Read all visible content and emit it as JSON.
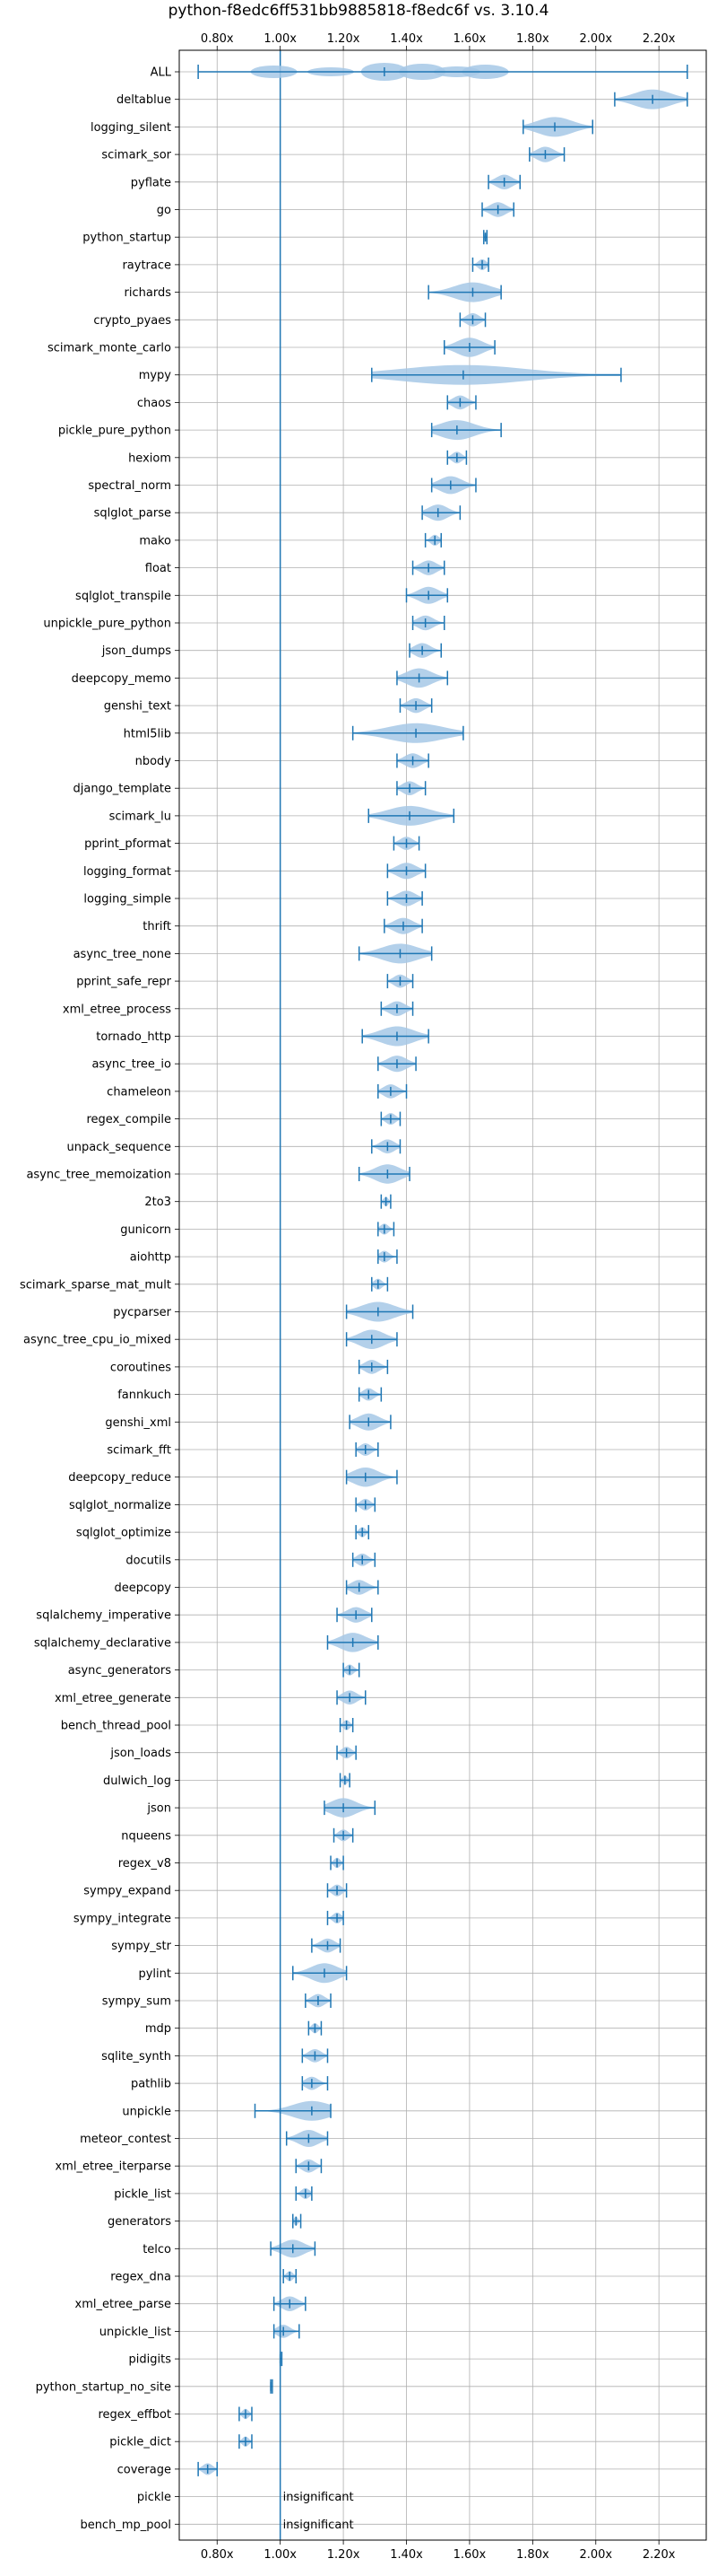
{
  "chart_data": {
    "type": "violin",
    "title": "python-f8edc6ff531bb9885818-f8edc6f vs. 3.10.4",
    "x_ticks": [
      0.8,
      1.0,
      1.2,
      1.4,
      1.6,
      1.8,
      2.0,
      2.2
    ],
    "x_tick_labels": [
      "0.80x",
      "1.00x",
      "1.20x",
      "1.40x",
      "1.60x",
      "1.80x",
      "2.00x",
      "2.20x"
    ],
    "xlim": [
      0.68,
      2.35
    ],
    "reference_line": 1.0,
    "grid": true,
    "colors": {
      "line": "#1f77b4",
      "violin": "#a6c8e6",
      "grid": "#b0b0b0"
    },
    "insignificant_label": "insignificant",
    "benchmarks": [
      {
        "name": "ALL",
        "min": 0.74,
        "median": 1.33,
        "max": 2.29,
        "spread": "all"
      },
      {
        "name": "deltablue",
        "min": 2.06,
        "median": 2.18,
        "max": 2.29
      },
      {
        "name": "logging_silent",
        "min": 1.77,
        "median": 1.87,
        "max": 1.99
      },
      {
        "name": "scimark_sor",
        "min": 1.79,
        "median": 1.84,
        "max": 1.9
      },
      {
        "name": "pyflate",
        "min": 1.66,
        "median": 1.71,
        "max": 1.76
      },
      {
        "name": "go",
        "min": 1.64,
        "median": 1.69,
        "max": 1.74
      },
      {
        "name": "python_startup",
        "min": 1.645,
        "median": 1.65,
        "max": 1.655
      },
      {
        "name": "raytrace",
        "min": 1.61,
        "median": 1.64,
        "max": 1.66
      },
      {
        "name": "richards",
        "min": 1.47,
        "median": 1.61,
        "max": 1.7
      },
      {
        "name": "crypto_pyaes",
        "min": 1.57,
        "median": 1.61,
        "max": 1.65
      },
      {
        "name": "scimark_monte_carlo",
        "min": 1.52,
        "median": 1.6,
        "max": 1.68
      },
      {
        "name": "mypy",
        "min": 1.29,
        "median": 1.58,
        "max": 2.08,
        "skew": true
      },
      {
        "name": "chaos",
        "min": 1.53,
        "median": 1.57,
        "max": 1.62
      },
      {
        "name": "pickle_pure_python",
        "min": 1.48,
        "median": 1.56,
        "max": 1.7
      },
      {
        "name": "hexiom",
        "min": 1.53,
        "median": 1.56,
        "max": 1.59
      },
      {
        "name": "spectral_norm",
        "min": 1.48,
        "median": 1.54,
        "max": 1.62
      },
      {
        "name": "sqlglot_parse",
        "min": 1.45,
        "median": 1.5,
        "max": 1.57
      },
      {
        "name": "mako",
        "min": 1.46,
        "median": 1.49,
        "max": 1.51
      },
      {
        "name": "float",
        "min": 1.42,
        "median": 1.47,
        "max": 1.52
      },
      {
        "name": "sqlglot_transpile",
        "min": 1.4,
        "median": 1.47,
        "max": 1.53
      },
      {
        "name": "unpickle_pure_python",
        "min": 1.42,
        "median": 1.46,
        "max": 1.52
      },
      {
        "name": "json_dumps",
        "min": 1.41,
        "median": 1.45,
        "max": 1.51
      },
      {
        "name": "deepcopy_memo",
        "min": 1.37,
        "median": 1.44,
        "max": 1.53
      },
      {
        "name": "genshi_text",
        "min": 1.38,
        "median": 1.43,
        "max": 1.48
      },
      {
        "name": "html5lib",
        "min": 1.23,
        "median": 1.43,
        "max": 1.58
      },
      {
        "name": "nbody",
        "min": 1.37,
        "median": 1.42,
        "max": 1.47
      },
      {
        "name": "django_template",
        "min": 1.37,
        "median": 1.41,
        "max": 1.46
      },
      {
        "name": "scimark_lu",
        "min": 1.28,
        "median": 1.41,
        "max": 1.55
      },
      {
        "name": "pprint_pformat",
        "min": 1.36,
        "median": 1.4,
        "max": 1.44
      },
      {
        "name": "logging_format",
        "min": 1.34,
        "median": 1.4,
        "max": 1.46
      },
      {
        "name": "logging_simple",
        "min": 1.34,
        "median": 1.4,
        "max": 1.45
      },
      {
        "name": "thrift",
        "min": 1.33,
        "median": 1.39,
        "max": 1.45
      },
      {
        "name": "async_tree_none",
        "min": 1.25,
        "median": 1.38,
        "max": 1.48
      },
      {
        "name": "pprint_safe_repr",
        "min": 1.34,
        "median": 1.38,
        "max": 1.42
      },
      {
        "name": "xml_etree_process",
        "min": 1.32,
        "median": 1.37,
        "max": 1.42
      },
      {
        "name": "tornado_http",
        "min": 1.26,
        "median": 1.37,
        "max": 1.47
      },
      {
        "name": "async_tree_io",
        "min": 1.31,
        "median": 1.37,
        "max": 1.43
      },
      {
        "name": "chameleon",
        "min": 1.31,
        "median": 1.35,
        "max": 1.4
      },
      {
        "name": "regex_compile",
        "min": 1.32,
        "median": 1.35,
        "max": 1.38
      },
      {
        "name": "unpack_sequence",
        "min": 1.29,
        "median": 1.34,
        "max": 1.38
      },
      {
        "name": "async_tree_memoization",
        "min": 1.25,
        "median": 1.34,
        "max": 1.41
      },
      {
        "name": "2to3",
        "min": 1.32,
        "median": 1.335,
        "max": 1.35
      },
      {
        "name": "gunicorn",
        "min": 1.31,
        "median": 1.33,
        "max": 1.36
      },
      {
        "name": "aiohttp",
        "min": 1.31,
        "median": 1.33,
        "max": 1.37
      },
      {
        "name": "scimark_sparse_mat_mult",
        "min": 1.29,
        "median": 1.31,
        "max": 1.34
      },
      {
        "name": "pycparser",
        "min": 1.21,
        "median": 1.31,
        "max": 1.42
      },
      {
        "name": "async_tree_cpu_io_mixed",
        "min": 1.21,
        "median": 1.29,
        "max": 1.37
      },
      {
        "name": "coroutines",
        "min": 1.25,
        "median": 1.29,
        "max": 1.34
      },
      {
        "name": "fannkuch",
        "min": 1.25,
        "median": 1.28,
        "max": 1.32
      },
      {
        "name": "genshi_xml",
        "min": 1.22,
        "median": 1.28,
        "max": 1.35
      },
      {
        "name": "scimark_fft",
        "min": 1.24,
        "median": 1.27,
        "max": 1.31
      },
      {
        "name": "deepcopy_reduce",
        "min": 1.21,
        "median": 1.27,
        "max": 1.37
      },
      {
        "name": "sqlglot_normalize",
        "min": 1.24,
        "median": 1.27,
        "max": 1.3
      },
      {
        "name": "sqlglot_optimize",
        "min": 1.24,
        "median": 1.26,
        "max": 1.28
      },
      {
        "name": "docutils",
        "min": 1.23,
        "median": 1.26,
        "max": 1.3
      },
      {
        "name": "deepcopy",
        "min": 1.21,
        "median": 1.25,
        "max": 1.31
      },
      {
        "name": "sqlalchemy_imperative",
        "min": 1.18,
        "median": 1.24,
        "max": 1.29
      },
      {
        "name": "sqlalchemy_declarative",
        "min": 1.15,
        "median": 1.23,
        "max": 1.31
      },
      {
        "name": "async_generators",
        "min": 1.2,
        "median": 1.22,
        "max": 1.25
      },
      {
        "name": "xml_etree_generate",
        "min": 1.18,
        "median": 1.22,
        "max": 1.27
      },
      {
        "name": "bench_thread_pool",
        "min": 1.19,
        "median": 1.21,
        "max": 1.23
      },
      {
        "name": "json_loads",
        "min": 1.18,
        "median": 1.21,
        "max": 1.24
      },
      {
        "name": "dulwich_log",
        "min": 1.19,
        "median": 1.205,
        "max": 1.22
      },
      {
        "name": "json",
        "min": 1.14,
        "median": 1.2,
        "max": 1.3
      },
      {
        "name": "nqueens",
        "min": 1.17,
        "median": 1.2,
        "max": 1.23
      },
      {
        "name": "regex_v8",
        "min": 1.16,
        "median": 1.18,
        "max": 1.2
      },
      {
        "name": "sympy_expand",
        "min": 1.15,
        "median": 1.18,
        "max": 1.21
      },
      {
        "name": "sympy_integrate",
        "min": 1.15,
        "median": 1.18,
        "max": 1.2
      },
      {
        "name": "sympy_str",
        "min": 1.1,
        "median": 1.15,
        "max": 1.19
      },
      {
        "name": "pylint",
        "min": 1.04,
        "median": 1.14,
        "max": 1.21,
        "skew": true
      },
      {
        "name": "sympy_sum",
        "min": 1.08,
        "median": 1.12,
        "max": 1.16
      },
      {
        "name": "mdp",
        "min": 1.09,
        "median": 1.11,
        "max": 1.13
      },
      {
        "name": "sqlite_synth",
        "min": 1.07,
        "median": 1.11,
        "max": 1.15
      },
      {
        "name": "pathlib",
        "min": 1.07,
        "median": 1.1,
        "max": 1.15
      },
      {
        "name": "unpickle",
        "min": 0.92,
        "median": 1.1,
        "max": 1.16
      },
      {
        "name": "meteor_contest",
        "min": 1.02,
        "median": 1.09,
        "max": 1.15
      },
      {
        "name": "xml_etree_iterparse",
        "min": 1.05,
        "median": 1.09,
        "max": 1.13
      },
      {
        "name": "pickle_list",
        "min": 1.05,
        "median": 1.08,
        "max": 1.1
      },
      {
        "name": "generators",
        "min": 1.04,
        "median": 1.05,
        "max": 1.065
      },
      {
        "name": "telco",
        "min": 0.97,
        "median": 1.04,
        "max": 1.11
      },
      {
        "name": "regex_dna",
        "min": 1.01,
        "median": 1.03,
        "max": 1.05
      },
      {
        "name": "xml_etree_parse",
        "min": 0.98,
        "median": 1.03,
        "max": 1.08
      },
      {
        "name": "unpickle_list",
        "min": 0.98,
        "median": 1.01,
        "max": 1.06
      },
      {
        "name": "pidigits",
        "min": 1.0,
        "median": 1.0,
        "max": 1.005
      },
      {
        "name": "python_startup_no_site",
        "min": 0.97,
        "median": 0.97,
        "max": 0.975
      },
      {
        "name": "regex_effbot",
        "min": 0.87,
        "median": 0.89,
        "max": 0.91
      },
      {
        "name": "pickle_dict",
        "min": 0.87,
        "median": 0.89,
        "max": 0.91
      },
      {
        "name": "coverage",
        "min": 0.74,
        "median": 0.77,
        "max": 0.8
      },
      {
        "name": "pickle",
        "insignificant": true
      },
      {
        "name": "bench_mp_pool",
        "insignificant": true
      }
    ]
  }
}
